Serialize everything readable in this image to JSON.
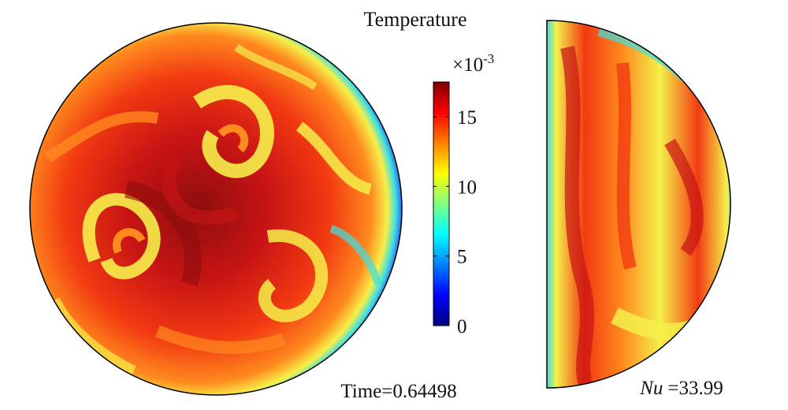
{
  "colorbar": {
    "title": "Temperature",
    "multiplier_base": "×10",
    "multiplier_exp": "-3",
    "ticks": [
      "0",
      "5",
      "10",
      "15"
    ],
    "colors": [
      "#00007f",
      "#0000ff",
      "#0080ff",
      "#00ffff",
      "#80ff80",
      "#ffff00",
      "#ff8000",
      "#ff0000",
      "#7f0000"
    ]
  },
  "time_label": "Time=0.64498",
  "nu_label": {
    "symbol": "Nu",
    "value": "=33.99"
  },
  "field_colors": {
    "cold": "#2b6cf2",
    "cool": "#40e0e0",
    "mid": "#f5f04a",
    "warm": "#ff8a1e",
    "hot": "#f23a12",
    "hotter": "#c81414",
    "core": "#8e0d0d"
  }
}
